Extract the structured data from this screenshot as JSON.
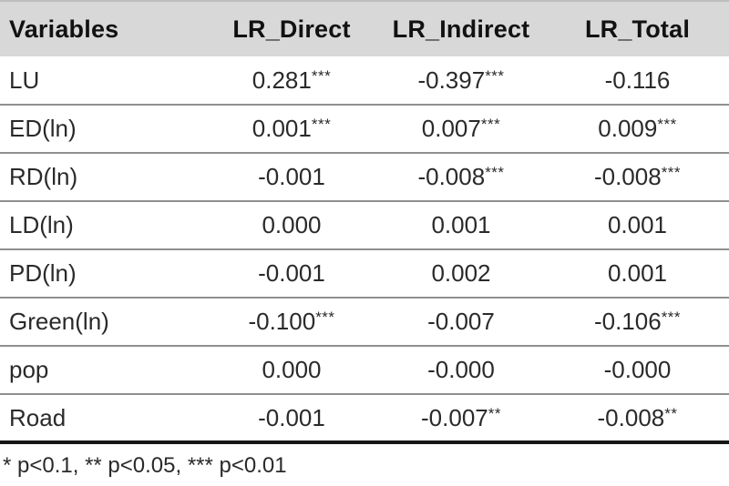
{
  "colors": {
    "header_bg": "#d8d8d8",
    "row_separator": "#8f8f8f",
    "bottom_rule": "#161616",
    "text": "#2a2a2a"
  },
  "table": {
    "columns": [
      "Variables",
      "LR_Direct",
      "LR_Indirect",
      "LR_Total"
    ],
    "rows": [
      {
        "label": "LU",
        "values": [
          "0.281",
          "-0.397",
          "-0.116"
        ],
        "stars": [
          "***",
          "***",
          ""
        ]
      },
      {
        "label": "ED(ln)",
        "values": [
          "0.001",
          "0.007",
          "0.009"
        ],
        "stars": [
          "***",
          "***",
          "***"
        ]
      },
      {
        "label": "RD(ln)",
        "values": [
          "-0.001",
          "-0.008",
          "-0.008"
        ],
        "stars": [
          "",
          "***",
          "***"
        ]
      },
      {
        "label": "LD(ln)",
        "values": [
          "0.000",
          "0.001",
          "0.001"
        ],
        "stars": [
          "",
          "",
          ""
        ]
      },
      {
        "label": "PD(ln)",
        "values": [
          "-0.001",
          "0.002",
          "0.001"
        ],
        "stars": [
          "",
          "",
          ""
        ]
      },
      {
        "label": "Green(ln)",
        "values": [
          "-0.100",
          "-0.007",
          "-0.106"
        ],
        "stars": [
          "***",
          "",
          "***"
        ]
      },
      {
        "label": "pop",
        "values": [
          "0.000",
          "-0.000",
          "-0.000"
        ],
        "stars": [
          "",
          "",
          ""
        ]
      },
      {
        "label": "Road",
        "values": [
          "-0.001",
          "-0.007",
          "-0.008"
        ],
        "stars": [
          "",
          "**",
          "**"
        ]
      }
    ],
    "footnote": "* p<0.1, ** p<0.05, *** p<0.01"
  }
}
